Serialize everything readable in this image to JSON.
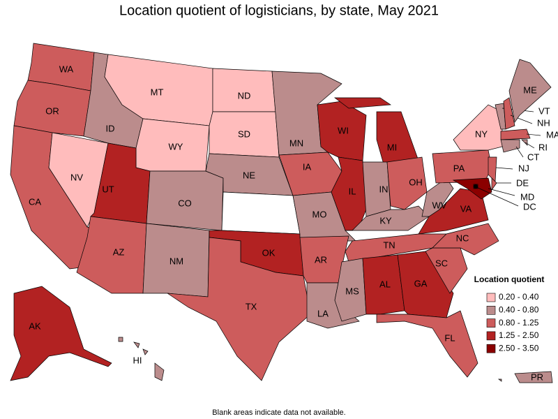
{
  "title": "Location quotient of logisticians, by state, May 2021",
  "note": "Blank areas indicate data not available.",
  "legend": {
    "title": "Location quotient",
    "items": [
      {
        "label": "0.20 - 0.40",
        "color": "#ffbcbc"
      },
      {
        "label": "0.40 - 0.80",
        "color": "#bb8c8c"
      },
      {
        "label": "0.80 - 1.25",
        "color": "#cd5c5c"
      },
      {
        "label": "1.25 - 2.50",
        "color": "#b22222"
      },
      {
        "label": "2.50 - 3.50",
        "color": "#8b0000"
      }
    ]
  },
  "states": [
    {
      "abbr": "WA",
      "color": "#cd5c5c"
    },
    {
      "abbr": "OR",
      "color": "#cd5c5c"
    },
    {
      "abbr": "CA",
      "color": "#cd5c5c"
    },
    {
      "abbr": "NV",
      "color": "#ffbcbc"
    },
    {
      "abbr": "ID",
      "color": "#bb8c8c"
    },
    {
      "abbr": "MT",
      "color": "#ffbcbc"
    },
    {
      "abbr": "WY",
      "color": "#ffbcbc"
    },
    {
      "abbr": "UT",
      "color": "#b22222"
    },
    {
      "abbr": "AZ",
      "color": "#cd5c5c"
    },
    {
      "abbr": "CO",
      "color": "#bb8c8c"
    },
    {
      "abbr": "NM",
      "color": "#bb8c8c"
    },
    {
      "abbr": "ND",
      "color": "#ffbcbc"
    },
    {
      "abbr": "SD",
      "color": "#ffbcbc"
    },
    {
      "abbr": "NE",
      "color": "#bb8c8c"
    },
    {
      "abbr": null,
      "color": "#ffffff"
    },
    {
      "abbr": "OK",
      "color": "#b22222"
    },
    {
      "abbr": "TX",
      "color": "#cd5c5c"
    },
    {
      "abbr": "MN",
      "color": "#bb8c8c"
    },
    {
      "abbr": "IA",
      "color": "#cd5c5c"
    },
    {
      "abbr": "MO",
      "color": "#bb8c8c"
    },
    {
      "abbr": "AR",
      "color": "#cd5c5c"
    },
    {
      "abbr": "LA",
      "color": "#bb8c8c"
    },
    {
      "abbr": "WI",
      "color": "#b22222"
    },
    {
      "abbr": "IL",
      "color": "#b22222"
    },
    {
      "abbr": "MI",
      "color": "#b22222"
    },
    {
      "abbr": "IN",
      "color": "#bb8c8c"
    },
    {
      "abbr": "OH",
      "color": "#cd5c5c"
    },
    {
      "abbr": "KY",
      "color": "#bb8c8c"
    },
    {
      "abbr": "TN",
      "color": "#cd5c5c"
    },
    {
      "abbr": "MS",
      "color": "#bb8c8c"
    },
    {
      "abbr": "AL",
      "color": "#b22222"
    },
    {
      "abbr": "GA",
      "color": "#b22222"
    },
    {
      "abbr": "FL",
      "color": "#cd5c5c"
    },
    {
      "abbr": "SC",
      "color": "#cd5c5c"
    },
    {
      "abbr": "NC",
      "color": "#cd5c5c"
    },
    {
      "abbr": "VA",
      "color": "#b22222"
    },
    {
      "abbr": "WV",
      "color": "#bb8c8c"
    },
    {
      "abbr": "PA",
      "color": "#cd5c5c"
    },
    {
      "abbr": "NY",
      "color": "#ffbcbc"
    },
    {
      "abbr": "NJ",
      "color": "#cd5c5c"
    },
    {
      "abbr": "DE",
      "color": "#cd5c5c"
    },
    {
      "abbr": "MD",
      "color": "#8b0000"
    },
    {
      "abbr": "DC",
      "color": "#8b0000"
    },
    {
      "abbr": "VT",
      "color": "#bb8c8c"
    },
    {
      "abbr": "NH",
      "color": "#cd5c5c"
    },
    {
      "abbr": "ME",
      "color": "#bb8c8c"
    },
    {
      "abbr": "MA",
      "color": "#cd5c5c"
    },
    {
      "abbr": "RI",
      "color": "#bb8c8c"
    },
    {
      "abbr": "CT",
      "color": "#bb8c8c"
    },
    {
      "abbr": "AK",
      "color": "#b22222"
    },
    {
      "abbr": "HI",
      "color": "#bb8c8c"
    },
    {
      "abbr": "PR",
      "color": "#bb8c8c"
    }
  ]
}
